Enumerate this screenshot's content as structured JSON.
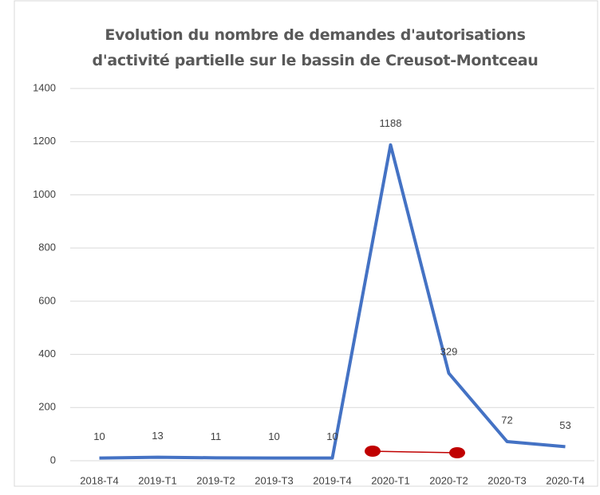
{
  "chart_data": {
    "type": "line",
    "title": "Evolution du nombre de demandes d'autorisations d'activité partielle sur le bassin de Creusot-Montceau",
    "categories": [
      "2018-T4",
      "2019-T1",
      "2019-T2",
      "2019-T3",
      "2019-T4",
      "2020-T1",
      "2020-T2",
      "2020-T3",
      "2020-T4"
    ],
    "values": [
      10,
      13,
      11,
      10,
      10,
      1188,
      329,
      72,
      53
    ],
    "color": "#4472c4",
    "ylim": [
      0,
      1400
    ],
    "yticks": [
      0,
      200,
      400,
      600,
      800,
      1000,
      1200,
      1400
    ],
    "grid": true
  }
}
